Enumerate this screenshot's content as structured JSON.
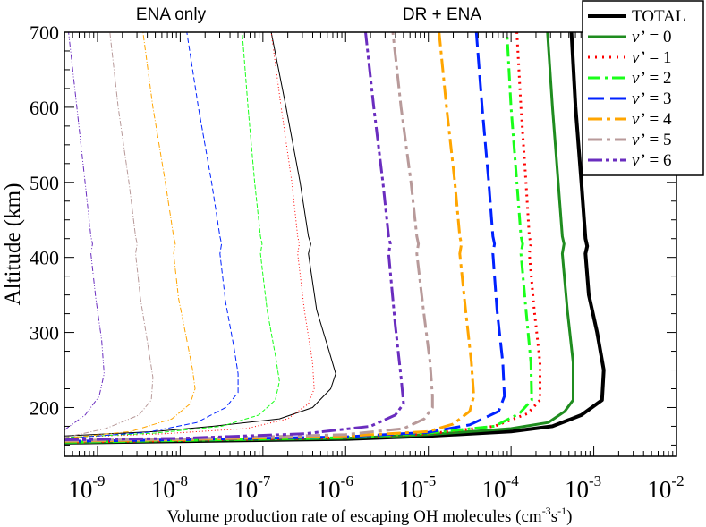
{
  "chart_data": {
    "type": "line",
    "xscale": "log",
    "xlabel_main": "Volume production rate of escaping OH molecules (cm",
    "xlabel_sup1": "-3",
    "xlabel_mid": "s",
    "xlabel_sup2": "-1",
    "xlabel_end": ")",
    "ylabel": "Altitude (km)",
    "xlim_exp": [
      -9.4,
      -2
    ],
    "ylim": [
      135,
      700
    ],
    "x_ticks_exp": [
      -9,
      -8,
      -7,
      -6,
      -5,
      -4,
      -3,
      -2
    ],
    "x_tick_base": "10",
    "x_tick_sup": [
      "-9",
      "-8",
      "-7",
      "-6",
      "-5",
      "-4",
      "-3",
      "-2"
    ],
    "y_ticks": [
      "200",
      "300",
      "400",
      "500",
      "600",
      "700"
    ],
    "annotations": [
      {
        "id": "ena",
        "text": "ENA only"
      },
      {
        "id": "dr",
        "text": "DR + ENA"
      }
    ],
    "legend": {
      "placement": "top-right",
      "entries": [
        {
          "label": "TOTAL",
          "italic_v": false,
          "num": "",
          "color": "#000000",
          "dash": "",
          "width": 4
        },
        {
          "label": "v’",
          "italic_v": true,
          "num": " = 0",
          "color": "#1f8c1f",
          "dash": "",
          "width": 3
        },
        {
          "label": "v’",
          "italic_v": true,
          "num": " = 1",
          "color": "#ff0000",
          "dash": "2 6",
          "width": 3
        },
        {
          "label": "v’",
          "italic_v": true,
          "num": " = 2",
          "color": "#1aff1a",
          "dash": "14 5 3 5",
          "width": 3
        },
        {
          "label": "v’",
          "italic_v": true,
          "num": " = 3",
          "color": "#0022ff",
          "dash": "18 7",
          "width": 3
        },
        {
          "label": "v’",
          "italic_v": true,
          "num": " = 4",
          "color": "#ffa500",
          "dash": "16 5 4 5",
          "width": 3
        },
        {
          "label": "v’",
          "italic_v": true,
          "num": " = 5",
          "color": "#b89a9a",
          "dash": "16 5 4 5",
          "width": 3
        },
        {
          "label": "v’",
          "italic_v": true,
          "num": " = 6",
          "color": "#6a2dbf",
          "dash": "16 4 4 4 4 4",
          "width": 3
        }
      ]
    },
    "series": [
      {
        "name": "TOTAL (DR + ENA)",
        "color": "#000000",
        "dash": "",
        "width": 4,
        "points": [
          [
            -9.4,
            153
          ],
          [
            -8,
            155
          ],
          [
            -6,
            158
          ],
          [
            -5,
            162
          ],
          [
            -4,
            168
          ],
          [
            -3.5,
            175
          ],
          [
            -3.15,
            190
          ],
          [
            -2.9,
            210
          ],
          [
            -2.88,
            250
          ],
          [
            -2.96,
            300
          ],
          [
            -3.06,
            350
          ],
          [
            -3.1,
            405
          ],
          [
            -3.08,
            415
          ],
          [
            -3.1,
            425
          ],
          [
            -3.15,
            500
          ],
          [
            -3.22,
            600
          ],
          [
            -3.27,
            700
          ]
        ]
      },
      {
        "name": "v'=0 (DR + ENA)",
        "color": "#1f8c1f",
        "dash": "",
        "width": 3,
        "points": [
          [
            -9.4,
            153
          ],
          [
            -8,
            156
          ],
          [
            -6,
            159
          ],
          [
            -5,
            164
          ],
          [
            -4,
            172
          ],
          [
            -3.55,
            180
          ],
          [
            -3.35,
            195
          ],
          [
            -3.25,
            210
          ],
          [
            -3.25,
            260
          ],
          [
            -3.32,
            330
          ],
          [
            -3.38,
            405
          ],
          [
            -3.36,
            418
          ],
          [
            -3.38,
            428
          ],
          [
            -3.43,
            500
          ],
          [
            -3.5,
            600
          ],
          [
            -3.56,
            700
          ]
        ]
      },
      {
        "name": "v'=1 (DR + ENA)",
        "color": "#ff0000",
        "dash": "2 5",
        "width": 3,
        "points": [
          [
            -9.4,
            154
          ],
          [
            -8,
            156
          ],
          [
            -6,
            160
          ],
          [
            -5,
            165
          ],
          [
            -4.2,
            175
          ],
          [
            -3.8,
            192
          ],
          [
            -3.65,
            210
          ],
          [
            -3.65,
            260
          ],
          [
            -3.72,
            330
          ],
          [
            -3.78,
            405
          ],
          [
            -3.76,
            418
          ],
          [
            -3.78,
            428
          ],
          [
            -3.82,
            500
          ],
          [
            -3.88,
            600
          ],
          [
            -3.93,
            700
          ]
        ]
      },
      {
        "name": "v'=2 (DR + ENA)",
        "color": "#1aff1a",
        "dash": "14 5 3 5",
        "width": 3,
        "points": [
          [
            -9.4,
            154
          ],
          [
            -8,
            156
          ],
          [
            -6,
            160
          ],
          [
            -5,
            166
          ],
          [
            -4.2,
            175
          ],
          [
            -3.9,
            192
          ],
          [
            -3.75,
            210
          ],
          [
            -3.76,
            260
          ],
          [
            -3.82,
            330
          ],
          [
            -3.88,
            405
          ],
          [
            -3.86,
            418
          ],
          [
            -3.88,
            428
          ],
          [
            -3.93,
            500
          ],
          [
            -4.0,
            600
          ],
          [
            -4.05,
            700
          ]
        ]
      },
      {
        "name": "v'=3 (DR + ENA)",
        "color": "#0022ff",
        "dash": "18 7",
        "width": 3,
        "points": [
          [
            -9.4,
            155
          ],
          [
            -8,
            157
          ],
          [
            -6,
            161
          ],
          [
            -5,
            167
          ],
          [
            -4.5,
            177
          ],
          [
            -4.15,
            195
          ],
          [
            -4.08,
            215
          ],
          [
            -4.1,
            260
          ],
          [
            -4.17,
            330
          ],
          [
            -4.22,
            405
          ],
          [
            -4.2,
            418
          ],
          [
            -4.22,
            428
          ],
          [
            -4.27,
            500
          ],
          [
            -4.35,
            600
          ],
          [
            -4.42,
            700
          ]
        ]
      },
      {
        "name": "v'=4 (DR + ENA)",
        "color": "#ffa500",
        "dash": "16 5 4 5",
        "width": 3,
        "points": [
          [
            -9.4,
            155
          ],
          [
            -8,
            157
          ],
          [
            -6,
            162
          ],
          [
            -5,
            168
          ],
          [
            -4.7,
            178
          ],
          [
            -4.5,
            195
          ],
          [
            -4.45,
            215
          ],
          [
            -4.48,
            260
          ],
          [
            -4.55,
            330
          ],
          [
            -4.62,
            405
          ],
          [
            -4.6,
            418
          ],
          [
            -4.62,
            428
          ],
          [
            -4.68,
            500
          ],
          [
            -4.78,
            600
          ],
          [
            -4.87,
            700
          ]
        ]
      },
      {
        "name": "v'=5 (DR + ENA)",
        "color": "#b89a9a",
        "dash": "16 5 4 5",
        "width": 3,
        "points": [
          [
            -9.4,
            156
          ],
          [
            -8,
            158
          ],
          [
            -6,
            164
          ],
          [
            -5.3,
            172
          ],
          [
            -5.05,
            185
          ],
          [
            -4.95,
            200
          ],
          [
            -4.95,
            215
          ],
          [
            -4.98,
            260
          ],
          [
            -5.06,
            330
          ],
          [
            -5.14,
            405
          ],
          [
            -5.12,
            418
          ],
          [
            -5.14,
            428
          ],
          [
            -5.21,
            500
          ],
          [
            -5.33,
            600
          ],
          [
            -5.43,
            700
          ]
        ]
      },
      {
        "name": "v'=6 (DR + ENA)",
        "color": "#6a2dbf",
        "dash": "16 4 4 4 4 4",
        "width": 3,
        "points": [
          [
            -9.4,
            157
          ],
          [
            -8,
            159
          ],
          [
            -6.5,
            165
          ],
          [
            -5.7,
            175
          ],
          [
            -5.4,
            190
          ],
          [
            -5.3,
            205
          ],
          [
            -5.33,
            240
          ],
          [
            -5.4,
            310
          ],
          [
            -5.48,
            405
          ],
          [
            -5.46,
            418
          ],
          [
            -5.48,
            428
          ],
          [
            -5.55,
            500
          ],
          [
            -5.66,
            600
          ],
          [
            -5.76,
            700
          ]
        ]
      },
      {
        "name": "TOTAL (ENA only)",
        "color": "#000000",
        "dash": "",
        "width": 1,
        "points": [
          [
            -9.4,
            162
          ],
          [
            -8.3,
            168
          ],
          [
            -7.6,
            175
          ],
          [
            -6.8,
            185
          ],
          [
            -6.4,
            200
          ],
          [
            -6.18,
            225
          ],
          [
            -6.12,
            245
          ],
          [
            -6.2,
            275
          ],
          [
            -6.35,
            330
          ],
          [
            -6.45,
            405
          ],
          [
            -6.42,
            418
          ],
          [
            -6.45,
            428
          ],
          [
            -6.55,
            500
          ],
          [
            -6.72,
            600
          ],
          [
            -6.9,
            700
          ]
        ]
      },
      {
        "name": "v'=1 (ENA only)",
        "color": "#ff0000",
        "dash": "1 2.5",
        "width": 1,
        "points": [
          [
            -9.4,
            160
          ],
          [
            -8.2,
            165
          ],
          [
            -7.2,
            172
          ],
          [
            -6.7,
            185
          ],
          [
            -6.45,
            205
          ],
          [
            -6.38,
            225
          ],
          [
            -6.4,
            260
          ],
          [
            -6.5,
            330
          ],
          [
            -6.58,
            405
          ],
          [
            -6.56,
            418
          ],
          [
            -6.58,
            428
          ],
          [
            -6.65,
            500
          ],
          [
            -6.78,
            600
          ],
          [
            -6.9,
            700
          ]
        ]
      },
      {
        "name": "v'=2 (ENA only)",
        "color": "#1aff1a",
        "dash": "5 2",
        "width": 1,
        "points": [
          [
            -9.4,
            160
          ],
          [
            -8.3,
            166
          ],
          [
            -7.5,
            175
          ],
          [
            -7.05,
            190
          ],
          [
            -6.85,
            210
          ],
          [
            -6.8,
            235
          ],
          [
            -6.85,
            270
          ],
          [
            -6.95,
            330
          ],
          [
            -7.03,
            405
          ],
          [
            -7.01,
            418
          ],
          [
            -7.03,
            428
          ],
          [
            -7.1,
            500
          ],
          [
            -7.18,
            600
          ],
          [
            -7.25,
            700
          ]
        ]
      },
      {
        "name": "v'=3 (ENA only)",
        "color": "#0022ff",
        "dash": "6 3",
        "width": 1,
        "points": [
          [
            -9.4,
            159
          ],
          [
            -8.4,
            167
          ],
          [
            -7.8,
            180
          ],
          [
            -7.45,
            200
          ],
          [
            -7.3,
            220
          ],
          [
            -7.3,
            245
          ],
          [
            -7.35,
            280
          ],
          [
            -7.45,
            340
          ],
          [
            -7.52,
            405
          ],
          [
            -7.5,
            418
          ],
          [
            -7.52,
            428
          ],
          [
            -7.62,
            500
          ],
          [
            -7.78,
            600
          ],
          [
            -7.92,
            700
          ]
        ]
      },
      {
        "name": "v'=4 (ENA only)",
        "color": "#ffa500",
        "dash": "6 2 1 2",
        "width": 1,
        "points": [
          [
            -9.4,
            159
          ],
          [
            -8.6,
            168
          ],
          [
            -8.1,
            185
          ],
          [
            -7.88,
            205
          ],
          [
            -7.82,
            225
          ],
          [
            -7.85,
            250
          ],
          [
            -7.92,
            290
          ],
          [
            -8.02,
            345
          ],
          [
            -8.08,
            405
          ],
          [
            -8.06,
            418
          ],
          [
            -8.08,
            428
          ],
          [
            -8.18,
            500
          ],
          [
            -8.33,
            600
          ],
          [
            -8.45,
            700
          ]
        ]
      },
      {
        "name": "v'=5 (ENA only)",
        "color": "#b89a9a",
        "dash": "6 2 1 2",
        "width": 1,
        "points": [
          [
            -9.4,
            160
          ],
          [
            -8.9,
            172
          ],
          [
            -8.5,
            190
          ],
          [
            -8.35,
            210
          ],
          [
            -8.33,
            240
          ],
          [
            -8.4,
            290
          ],
          [
            -8.48,
            345
          ],
          [
            -8.54,
            405
          ],
          [
            -8.52,
            418
          ],
          [
            -8.54,
            428
          ],
          [
            -8.62,
            500
          ],
          [
            -8.75,
            600
          ],
          [
            -8.85,
            700
          ]
        ]
      },
      {
        "name": "v'=6 (ENA only)",
        "color": "#6a2dbf",
        "dash": "6 2 1 2 1 2",
        "width": 1,
        "points": [
          [
            -9.4,
            170
          ],
          [
            -9.15,
            190
          ],
          [
            -8.98,
            215
          ],
          [
            -8.92,
            245
          ],
          [
            -8.95,
            290
          ],
          [
            -9.02,
            345
          ],
          [
            -9.08,
            405
          ],
          [
            -9.06,
            418
          ],
          [
            -9.08,
            428
          ],
          [
            -9.15,
            500
          ],
          [
            -9.25,
            600
          ],
          [
            -9.35,
            700
          ]
        ]
      }
    ]
  }
}
